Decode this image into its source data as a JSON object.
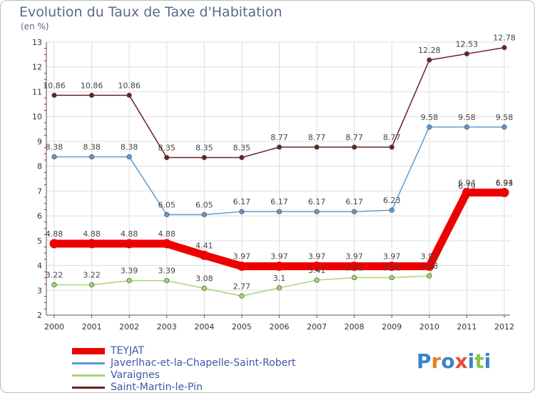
{
  "title": "Evolution du Taux de Taxe d'Habitation",
  "unit": "(en %)",
  "logo": {
    "letters": [
      "P",
      "r",
      "o",
      "x",
      "i",
      "t",
      "i"
    ],
    "colors": [
      "#3a84c9",
      "#e67e22",
      "#3a84c9",
      "#e74c3c",
      "#3a84c9",
      "#8bc34a",
      "#3a84c9"
    ]
  },
  "chart_data": {
    "type": "line",
    "title": "Evolution du Taux de Taxe d'Habitation",
    "ylabel": "(en %)",
    "xlabel": "",
    "x": [
      "2000",
      "2001",
      "2002",
      "2003",
      "2004",
      "2005",
      "2006",
      "2007",
      "2008",
      "2009",
      "2010",
      "2011",
      "2012"
    ],
    "ylim": [
      2,
      13
    ],
    "yticks": [
      "2",
      "3",
      "4",
      "5",
      "6",
      "7",
      "8",
      "9",
      "10",
      "11",
      "12",
      "13"
    ],
    "grid": "horizontal",
    "legend_position": "bottom-left",
    "series": [
      {
        "name": "TEYJAT",
        "color": "#ee0000",
        "values": [
          4.88,
          4.88,
          4.88,
          4.88,
          4.41,
          3.97,
          3.97,
          3.97,
          3.97,
          3.97,
          3.97,
          6.94,
          6.94
        ],
        "labels": [
          "4.88",
          "4.88",
          "4.88",
          "4.88",
          "4.41",
          "3.97",
          "3.97",
          "3.97",
          "3.97",
          "3.97",
          "3.97",
          "6.94",
          "6.94"
        ]
      },
      {
        "name": "Javerlhac-et-la-Chapelle-Saint-Robert",
        "color": "#5b9bd5",
        "values": [
          8.38,
          8.38,
          8.38,
          6.05,
          6.05,
          6.17,
          6.17,
          6.17,
          6.17,
          6.23,
          9.58,
          9.58,
          9.58
        ],
        "labels": [
          "8.38",
          "8.38",
          "8.38",
          "6.05",
          "6.05",
          "6.17",
          "6.17",
          "6.17",
          "6.17",
          "6.23",
          "9.58",
          "9.58",
          "9.58"
        ]
      },
      {
        "name": "Varaignes",
        "color": "#a4d96c",
        "values": [
          3.22,
          3.22,
          3.39,
          3.39,
          3.08,
          2.77,
          3.1,
          3.41,
          3.51,
          3.51,
          3.58,
          6.79,
          6.93
        ],
        "labels": [
          "3.22",
          "3.22",
          "3.39",
          "3.39",
          "3.08",
          "2.77",
          "3.1",
          "3.41",
          "3.51",
          "3.51",
          "3.58",
          "6.79",
          "6.93"
        ]
      },
      {
        "name": "Saint-Martin-le-Pin",
        "color": "#6b2020",
        "values": [
          10.86,
          10.86,
          10.86,
          8.35,
          8.35,
          8.35,
          8.77,
          8.77,
          8.77,
          8.77,
          12.28,
          12.53,
          12.78
        ],
        "labels": [
          "10.86",
          "10.86",
          "10.86",
          "8.35",
          "8.35",
          "8.35",
          "8.77",
          "8.77",
          "8.77",
          "8.77",
          "12.28",
          "12.53",
          "12.78"
        ]
      }
    ]
  }
}
